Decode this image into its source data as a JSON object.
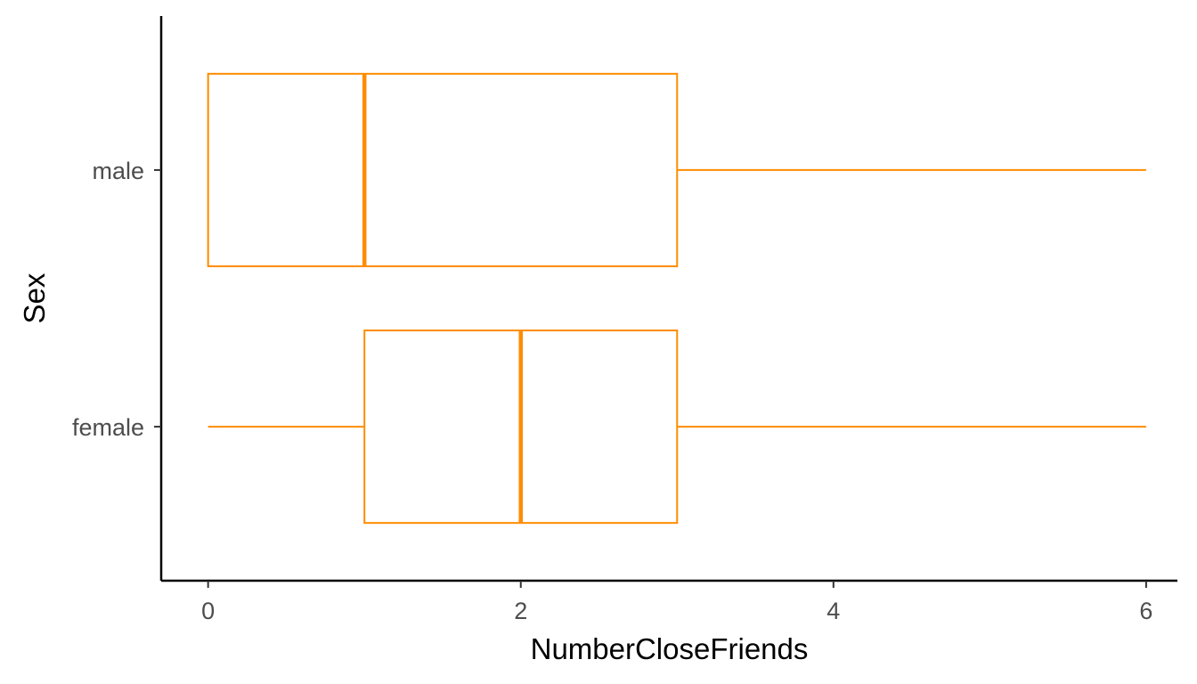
{
  "chart_data": {
    "type": "boxplot",
    "orientation": "horizontal",
    "xlabel": "NumberCloseFriends",
    "ylabel": "Sex",
    "xlim": [
      -0.3,
      6.2
    ],
    "x_ticks": [
      0,
      2,
      4,
      6
    ],
    "categories": [
      "female",
      "male"
    ],
    "boxes": [
      {
        "category": "female",
        "min": 0,
        "q1": 1,
        "median": 2,
        "q3": 3,
        "max": 6
      },
      {
        "category": "male",
        "min": 0,
        "q1": 0,
        "median": 1,
        "q3": 3,
        "max": 6
      }
    ],
    "color": "#FF8C00",
    "grid": false,
    "legend": "none"
  }
}
